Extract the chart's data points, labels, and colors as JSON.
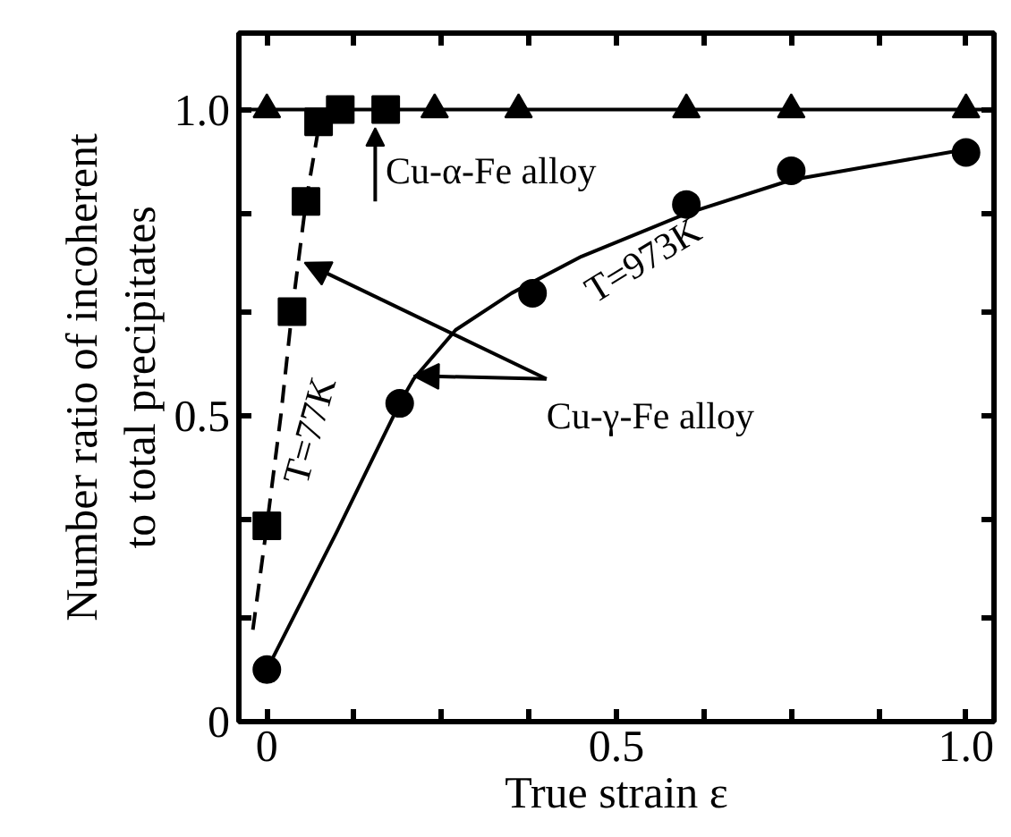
{
  "chart_data": {
    "type": "scatter",
    "xlabel": "True strain ε",
    "ylabel": "Number ratio of incoherent\nto total precipitates",
    "xlim": [
      -0.04,
      1.04
    ],
    "ylim": [
      0,
      1.125
    ],
    "xticks": [
      0,
      {
        "value": 0.125,
        "label": null
      },
      {
        "value": 0.25,
        "label": null
      },
      {
        "value": 0.375,
        "label": null
      },
      0.5,
      {
        "value": 0.625,
        "label": null
      },
      {
        "value": 0.75,
        "label": null
      },
      {
        "value": 0.875,
        "label": null
      },
      {
        "value": 1.0,
        "label": "1.0"
      }
    ],
    "yticks": [
      0,
      {
        "value": 0.17,
        "label": null
      },
      {
        "value": 0.33,
        "label": null
      },
      0.5,
      {
        "value": 0.67,
        "label": null
      },
      {
        "value": 0.83,
        "label": null
      },
      {
        "value": 1.0,
        "label": "1.0"
      }
    ],
    "grid": false,
    "series": [
      {
        "marker": "triangle",
        "color": "#000000",
        "x": [
          0,
          0.24,
          0.36,
          0.6,
          0.75,
          1.0
        ],
        "values": [
          1.0,
          1.0,
          1.0,
          1.0,
          1.0,
          1.0
        ]
      },
      {
        "marker": "square",
        "color": "#000000",
        "x": [
          0,
          0.036,
          0.056,
          0.074,
          0.105,
          0.17
        ],
        "values": [
          0.32,
          0.67,
          0.85,
          0.98,
          1.0,
          1.0
        ]
      },
      {
        "marker": "circle",
        "color": "#000000",
        "x": [
          0,
          0.19,
          0.38,
          0.6,
          0.75,
          1.0
        ],
        "values": [
          0.085,
          0.52,
          0.7,
          0.845,
          0.9,
          0.93
        ]
      },
      {
        "type": "line",
        "line_style": "solid",
        "color": "#000000",
        "x": [
          0,
          0.1,
          0.19,
          0.21,
          0.27,
          0.35,
          0.45,
          0.6,
          0.75,
          0.9,
          1.0
        ],
        "values": [
          0.085,
          0.31,
          0.52,
          0.56,
          0.64,
          0.7,
          0.76,
          0.83,
          0.885,
          0.915,
          0.935
        ]
      },
      {
        "type": "line",
        "line_style": "dashed",
        "color": "#000000",
        "x": [
          -0.02,
          0.0,
          0.02,
          0.036,
          0.056,
          0.074
        ],
        "values": [
          0.15,
          0.32,
          0.5,
          0.67,
          0.85,
          0.97
        ]
      }
    ],
    "ref_lines": [
      {
        "axis": "y",
        "value": 1.0,
        "color": "#000000",
        "line_style": "solid"
      }
    ],
    "annotations": [
      "Cu-α-Fe alloy",
      {
        "text": "Cu-γ-Fe alloy",
        "x": 0.21,
        "y": 0.565
      },
      "T=77K",
      "T=973K"
    ]
  }
}
